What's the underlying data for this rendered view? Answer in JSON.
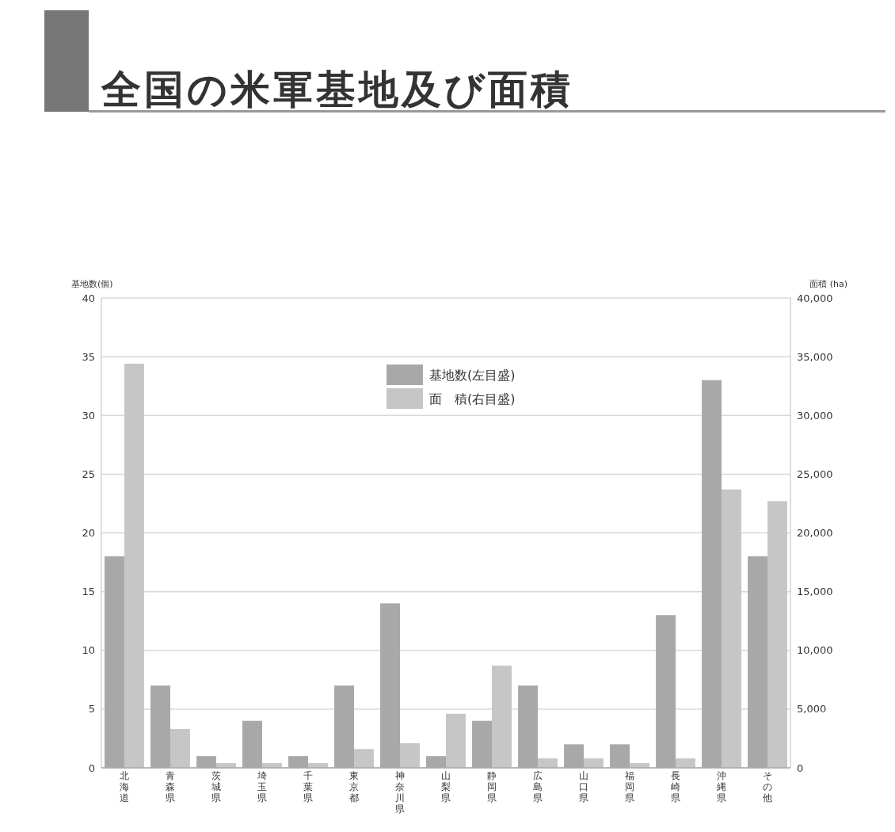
{
  "chart_data": {
    "type": "bar",
    "title": "全国の米軍基地及び面積",
    "ylabel": "基地数(個)",
    "y2label": "面積 (ha)",
    "categories": [
      "北海道",
      "青森県",
      "茨城県",
      "埼玉県",
      "千葉県",
      "東京都",
      "神奈川県",
      "山梨県",
      "静岡県",
      "広島県",
      "山口県",
      "福岡県",
      "長崎県",
      "沖縄県",
      "その他"
    ],
    "series": [
      {
        "name": "基地数(左目盛)",
        "color": "#a8a8a8",
        "values": [
          18,
          7,
          1,
          4,
          1,
          7,
          14,
          1,
          4,
          7,
          2,
          2,
          13,
          33,
          18
        ]
      },
      {
        "name": "面　積(右目盛)",
        "color": "#c6c6c6",
        "axis": "y2",
        "values": [
          34400,
          3300,
          400,
          400,
          400,
          1600,
          2100,
          4600,
          8700,
          800,
          800,
          400,
          800,
          23700,
          22700
        ]
      }
    ],
    "ylim": [
      0,
      40
    ],
    "yticks": [
      0,
      5,
      10,
      15,
      20,
      25,
      30,
      35,
      40
    ],
    "y2lim": [
      0,
      40000
    ],
    "y2ticks": [
      {
        "value": 0,
        "label": "0"
      },
      {
        "value": 5000,
        "label": "5,000"
      },
      {
        "value": 10000,
        "label": "10,000"
      },
      {
        "value": 15000,
        "label": "15,000"
      },
      {
        "value": 20000,
        "label": "20,000"
      },
      {
        "value": 25000,
        "label": "25,000"
      },
      {
        "value": 30000,
        "label": "30,000"
      },
      {
        "value": 35000,
        "label": "35,000"
      },
      {
        "value": 40000,
        "label": "40,000"
      }
    ],
    "grid": "y",
    "legend": "top"
  }
}
